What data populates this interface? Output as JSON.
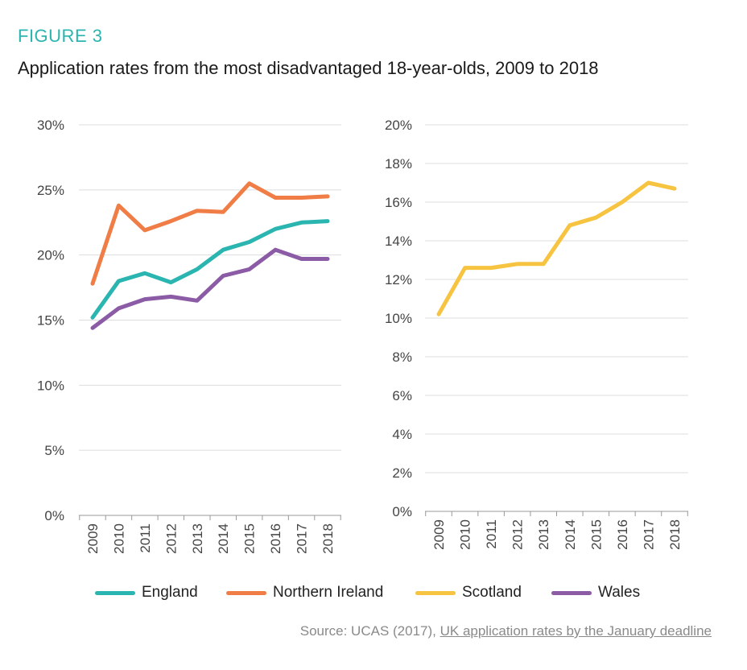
{
  "figure": {
    "label": "FIGURE 3",
    "title": "Application rates from the most disadvantaged 18-year-olds, 2009 to 2018"
  },
  "colors": {
    "England": "#2bb5b0",
    "Northern Ireland": "#ef7d45",
    "Scotland": "#f6c440",
    "Wales": "#8c5ba6",
    "grid": "#dddddd",
    "axis": "#999999"
  },
  "legend": [
    "England",
    "Northern Ireland",
    "Scotland",
    "Wales"
  ],
  "source": {
    "prefix": "Source: UCAS (2017), ",
    "link_text": "UK application rates by the January deadline"
  },
  "chart_data": [
    {
      "type": "line",
      "title": "",
      "xlabel": "",
      "ylabel": "",
      "x": [
        "2009",
        "2010",
        "2011",
        "2012",
        "2013",
        "2014",
        "2015",
        "2016",
        "2017",
        "2018"
      ],
      "ylim": [
        0,
        30
      ],
      "yticks": [
        0,
        5,
        10,
        15,
        20,
        25,
        30
      ],
      "ytick_labels": [
        "0%",
        "5%",
        "10%",
        "15%",
        "20%",
        "25%",
        "30%"
      ],
      "grid": true,
      "series": [
        {
          "name": "England",
          "values": [
            15.2,
            18.0,
            18.6,
            17.9,
            18.9,
            20.4,
            21.0,
            22.0,
            22.5,
            22.6
          ]
        },
        {
          "name": "Northern Ireland",
          "values": [
            17.8,
            23.8,
            21.9,
            22.6,
            23.4,
            23.3,
            25.5,
            24.4,
            24.4,
            24.5
          ]
        },
        {
          "name": "Wales",
          "values": [
            14.4,
            15.9,
            16.6,
            16.8,
            16.5,
            18.4,
            18.9,
            20.4,
            19.7,
            19.7
          ]
        }
      ]
    },
    {
      "type": "line",
      "title": "",
      "xlabel": "",
      "ylabel": "",
      "x": [
        "2009",
        "2010",
        "2011",
        "2012",
        "2013",
        "2014",
        "2015",
        "2016",
        "2017",
        "2018"
      ],
      "ylim": [
        0,
        20
      ],
      "yticks": [
        0,
        2,
        4,
        6,
        8,
        10,
        12,
        14,
        16,
        18,
        20
      ],
      "ytick_labels": [
        "0%",
        "2%",
        "4%",
        "6%",
        "8%",
        "10%",
        "12%",
        "14%",
        "16%",
        "18%",
        "20%"
      ],
      "grid": true,
      "series": [
        {
          "name": "Scotland",
          "values": [
            10.2,
            12.6,
            12.6,
            12.8,
            12.8,
            14.8,
            15.2,
            16.0,
            17.0,
            16.7
          ]
        }
      ]
    }
  ]
}
